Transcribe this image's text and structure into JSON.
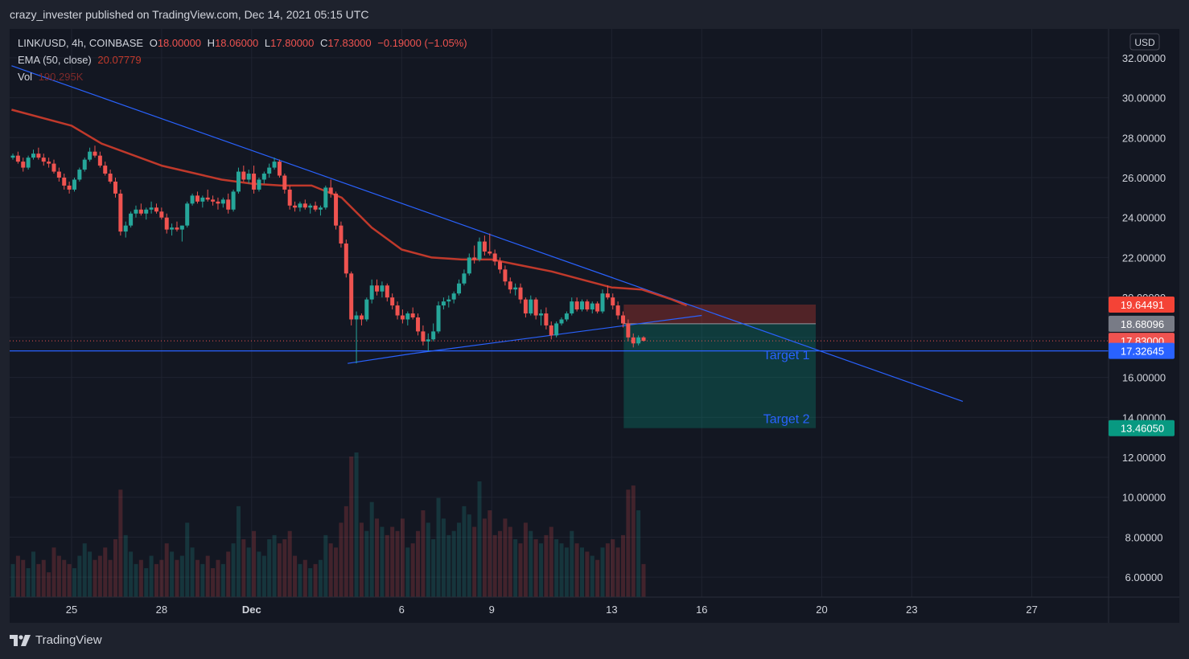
{
  "header": {
    "publisher": "crazy_invester published on TradingView.com, Dec 14, 2021 05:15 UTC"
  },
  "legend": {
    "symbol": "LINK/USD, 4h, COINBASE",
    "open_label": "O",
    "open": "18.00000",
    "high_label": "H",
    "high": "18.06000",
    "low_label": "L",
    "low": "17.80000",
    "close_label": "C",
    "close": "17.83000",
    "change": "−0.19000 (−1.05%)",
    "ema_label": "EMA (50, close)",
    "ema_value": "20.07779",
    "vol_label": "Vol",
    "vol_value": "190.295K"
  },
  "currency": "USD",
  "footer": {
    "brand": "TradingView"
  },
  "colors": {
    "bg": "#131722",
    "up": "#26a69a",
    "down": "#ef5350",
    "ema": "#c0392b",
    "trend": "#2962ff",
    "stop": "#f44336",
    "target": "#089981"
  },
  "chart_data": {
    "type": "candlestick",
    "ylim": [
      5,
      33
    ],
    "y_ticks": [
      "32.00000",
      "30.00000",
      "28.00000",
      "26.00000",
      "24.00000",
      "22.00000",
      "20.00000",
      "18.00000",
      "16.00000",
      "14.00000",
      "12.00000",
      "10.00000",
      "8.00000",
      "6.00000"
    ],
    "x_ticks": [
      {
        "label": "25",
        "day": 0
      },
      {
        "label": "28",
        "day": 3
      },
      {
        "label": "Dec",
        "day": 6
      },
      {
        "label": "6",
        "day": 11
      },
      {
        "label": "9",
        "day": 14
      },
      {
        "label": "13",
        "day": 18
      },
      {
        "label": "16",
        "day": 21
      },
      {
        "label": "20",
        "day": 25
      },
      {
        "label": "23",
        "day": 28
      },
      {
        "label": "27",
        "day": 32
      }
    ],
    "price_labels": [
      {
        "text": "19.64491",
        "value": 19.64491,
        "color": "#f44336"
      },
      {
        "text": "18.68096",
        "value": 18.68096,
        "color": "#787b86"
      },
      {
        "text": "17.83000",
        "value": 17.83,
        "color": "#ef5350"
      },
      {
        "text": "17.32645",
        "value": 17.32645,
        "color": "#2962ff"
      },
      {
        "text": "13.46050",
        "value": 13.4605,
        "color": "#089981"
      }
    ],
    "position": {
      "entry": 18.68096,
      "stop": 19.64491,
      "target": 13.4605,
      "start_day": 18.4,
      "end_day": 24.8
    },
    "horizontal_line": 17.32645,
    "current_price": 17.83,
    "trendlines": [
      {
        "from": [
          -2.0,
          31.6
        ],
        "to": [
          29.7,
          14.8
        ]
      },
      {
        "from": [
          9.2,
          16.7
        ],
        "to": [
          11.4,
          17.2
        ]
      },
      {
        "from": [
          11.4,
          17.2
        ],
        "to": [
          21.0,
          19.1
        ]
      }
    ],
    "annotations": [
      {
        "text": "Target 1",
        "day": 24.6,
        "value": 16.9
      },
      {
        "text": "Target 2",
        "day": 24.6,
        "value": 13.7
      }
    ],
    "ema_path": [
      [
        -2.0,
        29.4
      ],
      [
        0,
        28.6
      ],
      [
        1,
        27.7
      ],
      [
        3,
        26.6
      ],
      [
        5,
        25.9
      ],
      [
        6,
        25.7
      ],
      [
        7,
        25.6
      ],
      [
        8,
        25.6
      ],
      [
        9,
        25.0
      ],
      [
        10,
        23.5
      ],
      [
        11,
        22.4
      ],
      [
        12,
        22.0
      ],
      [
        13,
        21.9
      ],
      [
        14,
        21.9
      ],
      [
        15,
        21.6
      ],
      [
        16,
        21.3
      ],
      [
        17,
        20.9
      ],
      [
        18,
        20.5
      ],
      [
        19,
        20.4
      ],
      [
        20,
        19.9
      ],
      [
        20.5,
        19.6
      ]
    ],
    "candles": [
      [
        27.0,
        27.2,
        26.9,
        27.1
      ],
      [
        27.1,
        27.3,
        26.7,
        26.8
      ],
      [
        26.8,
        27.0,
        26.3,
        26.5
      ],
      [
        26.5,
        27.1,
        26.4,
        27.0
      ],
      [
        27.0,
        27.4,
        26.9,
        27.2
      ],
      [
        27.2,
        27.5,
        26.9,
        27.0
      ],
      [
        27.0,
        27.2,
        26.6,
        26.8
      ],
      [
        26.8,
        27.0,
        26.5,
        26.7
      ],
      [
        26.7,
        26.9,
        26.2,
        26.3
      ],
      [
        26.3,
        26.5,
        25.8,
        26.0
      ],
      [
        26.0,
        26.2,
        25.4,
        25.6
      ],
      [
        25.6,
        25.8,
        25.2,
        25.4
      ],
      [
        25.4,
        26.0,
        25.3,
        25.9
      ],
      [
        25.9,
        26.5,
        25.8,
        26.4
      ],
      [
        26.4,
        27.0,
        26.3,
        26.9
      ],
      [
        26.9,
        27.5,
        26.8,
        27.3
      ],
      [
        27.3,
        27.6,
        27.0,
        27.1
      ],
      [
        27.1,
        27.3,
        26.5,
        26.6
      ],
      [
        26.6,
        26.8,
        26.1,
        26.2
      ],
      [
        26.2,
        26.4,
        25.7,
        25.8
      ],
      [
        25.8,
        26.0,
        25.0,
        25.2
      ],
      [
        25.2,
        25.4,
        23.1,
        23.3
      ],
      [
        23.3,
        23.8,
        23.0,
        23.6
      ],
      [
        23.6,
        24.3,
        23.5,
        24.2
      ],
      [
        24.2,
        24.6,
        24.0,
        24.4
      ],
      [
        24.4,
        24.7,
        24.1,
        24.2
      ],
      [
        24.2,
        24.5,
        23.9,
        24.4
      ],
      [
        24.4,
        24.8,
        24.2,
        24.5
      ],
      [
        24.5,
        24.7,
        24.2,
        24.3
      ],
      [
        24.3,
        24.5,
        23.9,
        24.0
      ],
      [
        24.0,
        24.2,
        23.2,
        23.4
      ],
      [
        23.4,
        23.7,
        23.1,
        23.5
      ],
      [
        23.5,
        23.8,
        23.3,
        23.4
      ],
      [
        23.4,
        23.6,
        22.8,
        23.6
      ],
      [
        23.6,
        24.8,
        23.5,
        24.7
      ],
      [
        24.7,
        25.2,
        24.6,
        25.1
      ],
      [
        25.1,
        25.3,
        24.7,
        24.8
      ],
      [
        24.8,
        25.1,
        24.5,
        25.0
      ],
      [
        25.0,
        25.4,
        24.8,
        24.9
      ],
      [
        24.9,
        25.1,
        24.6,
        24.8
      ],
      [
        24.8,
        25.0,
        24.4,
        24.7
      ],
      [
        24.7,
        25.0,
        24.5,
        24.9
      ],
      [
        24.9,
        25.2,
        24.2,
        24.4
      ],
      [
        24.4,
        25.4,
        24.3,
        25.3
      ],
      [
        25.3,
        26.5,
        25.2,
        26.3
      ],
      [
        26.3,
        26.6,
        25.8,
        25.9
      ],
      [
        25.9,
        26.4,
        25.7,
        26.2
      ],
      [
        26.2,
        26.6,
        25.2,
        25.4
      ],
      [
        25.4,
        26.0,
        25.3,
        25.9
      ],
      [
        25.9,
        26.3,
        25.7,
        26.2
      ],
      [
        26.2,
        26.7,
        26.0,
        26.5
      ],
      [
        26.5,
        27.0,
        26.4,
        26.8
      ],
      [
        26.8,
        26.9,
        26.0,
        26.1
      ],
      [
        26.1,
        26.2,
        25.2,
        25.4
      ],
      [
        25.4,
        25.6,
        24.4,
        24.6
      ],
      [
        24.6,
        24.8,
        24.3,
        24.5
      ],
      [
        24.5,
        24.8,
        24.3,
        24.7
      ],
      [
        24.7,
        24.9,
        24.4,
        24.5
      ],
      [
        24.5,
        24.7,
        24.2,
        24.6
      ],
      [
        24.6,
        24.8,
        24.3,
        24.4
      ],
      [
        24.4,
        24.6,
        24.1,
        24.5
      ],
      [
        24.5,
        25.6,
        24.4,
        25.5
      ],
      [
        25.5,
        25.9,
        25.0,
        25.2
      ],
      [
        25.2,
        25.3,
        23.4,
        23.6
      ],
      [
        23.6,
        23.8,
        22.5,
        22.7
      ],
      [
        22.7,
        22.9,
        21.0,
        21.2
      ],
      [
        21.2,
        21.3,
        18.6,
        18.9
      ],
      [
        18.9,
        19.3,
        16.7,
        19.1
      ],
      [
        19.1,
        19.2,
        18.6,
        18.9
      ],
      [
        18.9,
        20.0,
        18.8,
        19.9
      ],
      [
        19.9,
        20.9,
        19.7,
        20.6
      ],
      [
        20.6,
        20.9,
        20.1,
        20.3
      ],
      [
        20.3,
        20.8,
        20.0,
        20.6
      ],
      [
        20.6,
        20.7,
        19.8,
        20.0
      ],
      [
        20.0,
        20.2,
        19.4,
        19.6
      ],
      [
        19.6,
        19.8,
        18.9,
        19.1
      ],
      [
        19.1,
        19.4,
        18.7,
        18.9
      ],
      [
        18.9,
        19.3,
        18.6,
        19.2
      ],
      [
        19.2,
        19.5,
        18.9,
        19.0
      ],
      [
        19.0,
        19.2,
        18.1,
        18.3
      ],
      [
        18.3,
        18.6,
        17.6,
        17.8
      ],
      [
        17.8,
        18.2,
        17.3,
        17.9
      ],
      [
        17.9,
        18.7,
        17.8,
        18.3
      ],
      [
        18.3,
        19.8,
        18.2,
        19.6
      ],
      [
        19.6,
        20.0,
        19.4,
        19.8
      ],
      [
        19.8,
        20.1,
        19.5,
        19.9
      ],
      [
        19.9,
        20.3,
        19.7,
        20.2
      ],
      [
        20.2,
        20.9,
        20.1,
        20.7
      ],
      [
        20.7,
        21.4,
        20.6,
        21.2
      ],
      [
        21.2,
        22.2,
        21.1,
        22.0
      ],
      [
        22.0,
        22.6,
        21.7,
        21.9
      ],
      [
        21.9,
        23.0,
        21.8,
        22.8
      ],
      [
        22.8,
        23.1,
        22.1,
        22.3
      ],
      [
        22.3,
        23.2,
        22.1,
        22.2
      ],
      [
        22.2,
        22.4,
        21.6,
        21.8
      ],
      [
        21.8,
        22.0,
        21.2,
        21.4
      ],
      [
        21.4,
        21.6,
        20.6,
        20.8
      ],
      [
        20.8,
        21.0,
        20.2,
        20.4
      ],
      [
        20.4,
        20.7,
        20.1,
        20.5
      ],
      [
        20.5,
        20.7,
        19.7,
        19.9
      ],
      [
        19.9,
        20.0,
        19.0,
        19.2
      ],
      [
        19.2,
        20.1,
        19.1,
        19.9
      ],
      [
        19.9,
        20.0,
        18.9,
        19.1
      ],
      [
        19.1,
        19.4,
        18.6,
        19.2
      ],
      [
        19.2,
        19.5,
        18.4,
        18.6
      ],
      [
        18.6,
        18.8,
        17.9,
        18.1
      ],
      [
        18.1,
        18.8,
        18.0,
        18.7
      ],
      [
        18.7,
        19.0,
        18.6,
        18.9
      ],
      [
        18.9,
        19.3,
        18.8,
        19.2
      ],
      [
        19.2,
        20.0,
        19.1,
        19.8
      ],
      [
        19.8,
        20.0,
        19.3,
        19.4
      ],
      [
        19.4,
        19.9,
        19.3,
        19.8
      ],
      [
        19.8,
        19.9,
        19.3,
        19.4
      ],
      [
        19.4,
        19.8,
        19.2,
        19.7
      ],
      [
        19.7,
        19.8,
        19.2,
        19.3
      ],
      [
        19.3,
        20.4,
        19.2,
        20.2
      ],
      [
        20.2,
        20.6,
        19.9,
        20.0
      ],
      [
        20.0,
        20.2,
        19.4,
        19.6
      ],
      [
        19.6,
        19.8,
        18.9,
        19.1
      ],
      [
        19.1,
        19.3,
        18.5,
        18.7
      ],
      [
        18.7,
        18.9,
        17.8,
        18.0
      ],
      [
        18.0,
        18.2,
        17.5,
        17.7
      ],
      [
        17.7,
        18.1,
        17.6,
        18.0
      ],
      [
        18.0,
        18.06,
        17.8,
        17.83
      ]
    ],
    "volume": [
      0.8,
      1.0,
      0.9,
      0.7,
      1.1,
      0.8,
      0.9,
      0.6,
      1.2,
      1.0,
      0.9,
      0.8,
      0.7,
      1.0,
      1.3,
      1.1,
      0.9,
      1.0,
      1.2,
      0.9,
      1.4,
      2.6,
      1.5,
      1.1,
      0.8,
      0.9,
      0.7,
      1.0,
      0.8,
      0.9,
      1.3,
      1.1,
      0.9,
      1.0,
      1.8,
      1.2,
      0.9,
      0.8,
      1.0,
      0.7,
      0.9,
      0.8,
      1.1,
      1.3,
      2.2,
      1.4,
      1.2,
      1.6,
      1.1,
      1.0,
      1.4,
      1.5,
      1.3,
      1.4,
      1.6,
      1.0,
      0.8,
      0.9,
      0.7,
      0.8,
      0.9,
      1.5,
      1.3,
      1.2,
      1.8,
      2.2,
      3.4,
      3.5,
      1.8,
      1.6,
      2.3,
      1.9,
      1.7,
      1.5,
      1.7,
      1.6,
      1.9,
      1.2,
      1.3,
      1.6,
      2.1,
      1.8,
      1.4,
      2.4,
      1.9,
      1.5,
      1.6,
      1.8,
      2.2,
      2.0,
      1.7,
      2.8,
      1.9,
      2.1,
      1.5,
      1.6,
      1.9,
      1.7,
      1.4,
      1.3,
      1.8,
      1.6,
      1.4,
      1.3,
      1.5,
      1.7,
      1.4,
      1.3,
      1.2,
      1.6,
      1.3,
      1.2,
      1.1,
      1.0,
      0.9,
      1.2,
      1.3,
      1.4,
      1.2,
      1.5,
      2.6,
      2.7,
      2.1,
      0.8
    ]
  }
}
